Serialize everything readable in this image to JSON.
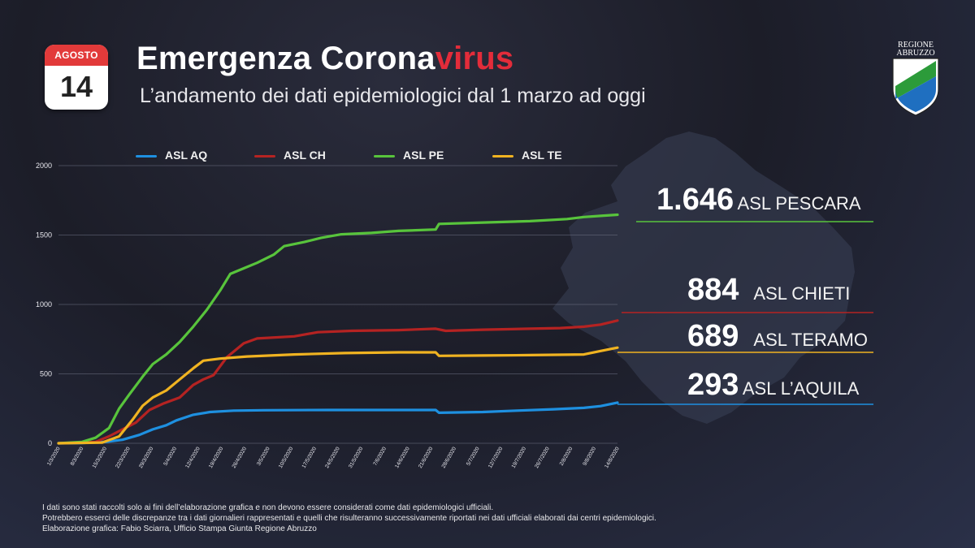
{
  "calendar": {
    "month": "AGOSTO",
    "day": "14"
  },
  "header": {
    "title_main": "Emergenza Corona",
    "title_accent": "virus",
    "subtitle": "L’andamento dei dati epidemiologici dal 1 marzo ad oggi"
  },
  "logo": {
    "line1": "REGIONE",
    "line2": "ABRUZZO"
  },
  "colors": {
    "aq": "#1e90e0",
    "ch": "#b52322",
    "pe": "#58c43c",
    "te": "#f0b321",
    "accent": "#e32c3a"
  },
  "chart_data": {
    "type": "line",
    "ylim": [
      0,
      2000
    ],
    "yticks": [
      "0",
      "500",
      "1000",
      "1500",
      "2000"
    ],
    "x_start": "2020-03-01",
    "x_end": "2020-08-14",
    "x_ticks": [
      "1/3/2020",
      "8/3/2020",
      "15/3/2020",
      "22/3/2020",
      "29/3/2020",
      "5/4/2020",
      "12/4/2020",
      "19/4/2020",
      "26/4/2020",
      "3/5/2020",
      "10/5/2020",
      "17/5/2020",
      "24/5/2020",
      "31/5/2020",
      "7/6/2020",
      "14/6/2020",
      "21/6/2020",
      "28/6/2020",
      "5/7/2020",
      "12/7/2020",
      "19/7/2020",
      "26/7/2020",
      "2/8/2020",
      "9/8/2020",
      "14/8/2020"
    ],
    "series": [
      {
        "name": "ASL AQ",
        "color": "#1e90e0",
        "points": [
          [
            "2020-03-01",
            0
          ],
          [
            "2020-03-08",
            2
          ],
          [
            "2020-03-15",
            10
          ],
          [
            "2020-03-20",
            25
          ],
          [
            "2020-03-25",
            60
          ],
          [
            "2020-03-29",
            100
          ],
          [
            "2020-04-02",
            130
          ],
          [
            "2020-04-05",
            165
          ],
          [
            "2020-04-10",
            205
          ],
          [
            "2020-04-15",
            225
          ],
          [
            "2020-04-22",
            235
          ],
          [
            "2020-05-01",
            238
          ],
          [
            "2020-05-20",
            240
          ],
          [
            "2020-06-10",
            240
          ],
          [
            "2020-06-21",
            240
          ],
          [
            "2020-06-22",
            220
          ],
          [
            "2020-07-05",
            225
          ],
          [
            "2020-07-15",
            235
          ],
          [
            "2020-07-26",
            245
          ],
          [
            "2020-08-04",
            255
          ],
          [
            "2020-08-09",
            268
          ],
          [
            "2020-08-14",
            293
          ]
        ]
      },
      {
        "name": "ASL CH",
        "color": "#b52322",
        "points": [
          [
            "2020-03-01",
            0
          ],
          [
            "2020-03-12",
            10
          ],
          [
            "2020-03-16",
            50
          ],
          [
            "2020-03-20",
            100
          ],
          [
            "2020-03-24",
            150
          ],
          [
            "2020-03-28",
            240
          ],
          [
            "2020-04-01",
            285
          ],
          [
            "2020-04-06",
            330
          ],
          [
            "2020-04-10",
            420
          ],
          [
            "2020-04-13",
            460
          ],
          [
            "2020-04-16",
            490
          ],
          [
            "2020-04-20",
            620
          ],
          [
            "2020-04-25",
            720
          ],
          [
            "2020-04-29",
            755
          ],
          [
            "2020-05-10",
            770
          ],
          [
            "2020-05-17",
            800
          ],
          [
            "2020-05-27",
            810
          ],
          [
            "2020-06-10",
            815
          ],
          [
            "2020-06-21",
            825
          ],
          [
            "2020-06-24",
            810
          ],
          [
            "2020-07-05",
            818
          ],
          [
            "2020-07-19",
            825
          ],
          [
            "2020-07-28",
            830
          ],
          [
            "2020-08-04",
            840
          ],
          [
            "2020-08-09",
            855
          ],
          [
            "2020-08-14",
            884
          ]
        ]
      },
      {
        "name": "ASL PE",
        "color": "#58c43c",
        "points": [
          [
            "2020-03-01",
            0
          ],
          [
            "2020-03-08",
            10
          ],
          [
            "2020-03-12",
            40
          ],
          [
            "2020-03-16",
            110
          ],
          [
            "2020-03-19",
            250
          ],
          [
            "2020-03-22",
            350
          ],
          [
            "2020-03-26",
            480
          ],
          [
            "2020-03-29",
            570
          ],
          [
            "2020-04-02",
            640
          ],
          [
            "2020-04-06",
            730
          ],
          [
            "2020-04-10",
            840
          ],
          [
            "2020-04-14",
            960
          ],
          [
            "2020-04-18",
            1100
          ],
          [
            "2020-04-21",
            1220
          ],
          [
            "2020-04-25",
            1260
          ],
          [
            "2020-04-29",
            1300
          ],
          [
            "2020-05-04",
            1360
          ],
          [
            "2020-05-07",
            1420
          ],
          [
            "2020-05-13",
            1450
          ],
          [
            "2020-05-18",
            1480
          ],
          [
            "2020-05-24",
            1505
          ],
          [
            "2020-06-02",
            1515
          ],
          [
            "2020-06-10",
            1530
          ],
          [
            "2020-06-21",
            1540
          ],
          [
            "2020-06-22",
            1580
          ],
          [
            "2020-07-05",
            1590
          ],
          [
            "2020-07-19",
            1600
          ],
          [
            "2020-07-30",
            1615
          ],
          [
            "2020-08-04",
            1630
          ],
          [
            "2020-08-09",
            1638
          ],
          [
            "2020-08-14",
            1646
          ]
        ]
      },
      {
        "name": "ASL TE",
        "color": "#f0b321",
        "points": [
          [
            "2020-03-01",
            0
          ],
          [
            "2020-03-14",
            5
          ],
          [
            "2020-03-19",
            50
          ],
          [
            "2020-03-23",
            170
          ],
          [
            "2020-03-26",
            270
          ],
          [
            "2020-03-29",
            330
          ],
          [
            "2020-04-02",
            380
          ],
          [
            "2020-04-06",
            460
          ],
          [
            "2020-04-10",
            540
          ],
          [
            "2020-04-13",
            595
          ],
          [
            "2020-04-18",
            610
          ],
          [
            "2020-04-26",
            625
          ],
          [
            "2020-05-10",
            640
          ],
          [
            "2020-05-25",
            650
          ],
          [
            "2020-06-10",
            655
          ],
          [
            "2020-06-21",
            655
          ],
          [
            "2020-06-22",
            630
          ],
          [
            "2020-07-05",
            632
          ],
          [
            "2020-07-19",
            635
          ],
          [
            "2020-08-04",
            640
          ],
          [
            "2020-08-09",
            665
          ],
          [
            "2020-08-14",
            689
          ]
        ]
      }
    ]
  },
  "callouts": [
    {
      "value": "1.646",
      "label": "ASL PESCARA",
      "color": "#58c43c"
    },
    {
      "value": "884",
      "label": "ASL CHIETI",
      "color": "#b52322"
    },
    {
      "value": "689",
      "label": "ASL TERAMO",
      "color": "#f0b321"
    },
    {
      "value": "293",
      "label": "ASL L’AQUILA",
      "color": "#1e90e0"
    }
  ],
  "footnote": [
    "I dati sono stati raccolti solo ai fini dell’elaborazione grafica e non devono essere considerati come dati epidemiologici ufficiali.",
    "Potrebbero esserci delle discrepanze tra i dati giornalieri rappresentati e quelli che risulteranno successivamente riportati nei dati ufficiali elaborati dai centri epidemiologici.",
    "Elaborazione grafica: Fabio Sciarra, Ufficio Stampa Giunta Regione Abruzzo"
  ]
}
